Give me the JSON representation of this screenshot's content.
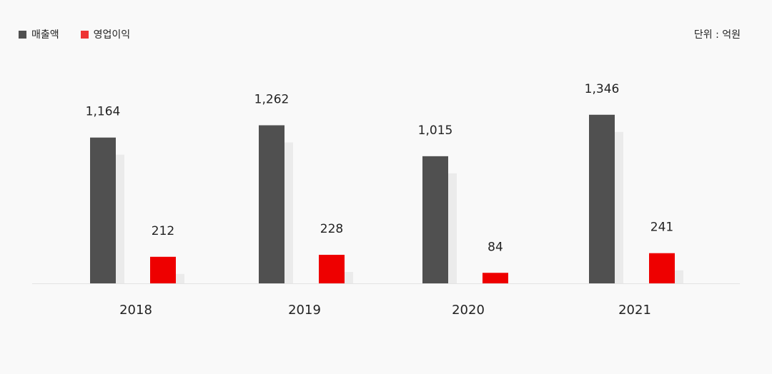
{
  "chart_data": {
    "type": "bar",
    "categories": [
      "2018",
      "2019",
      "2020",
      "2021"
    ],
    "series": [
      {
        "name": "매출액",
        "values": [
          1164,
          1262,
          1015,
          1346
        ],
        "color": "#505050"
      },
      {
        "name": "영업이익",
        "values": [
          212,
          228,
          84,
          241
        ],
        "color": "#ee0000"
      }
    ],
    "value_labels": {
      "매출액": [
        "1,164",
        "1,262",
        "1,015",
        "1,346"
      ],
      "영업이익": [
        "212",
        "228",
        "84",
        "241"
      ]
    },
    "unit": "단위 : 억원",
    "legend_position": "top-left",
    "grid": false,
    "shadow_color": "#ebebeb",
    "baseline_color": "#e3e3e3"
  }
}
